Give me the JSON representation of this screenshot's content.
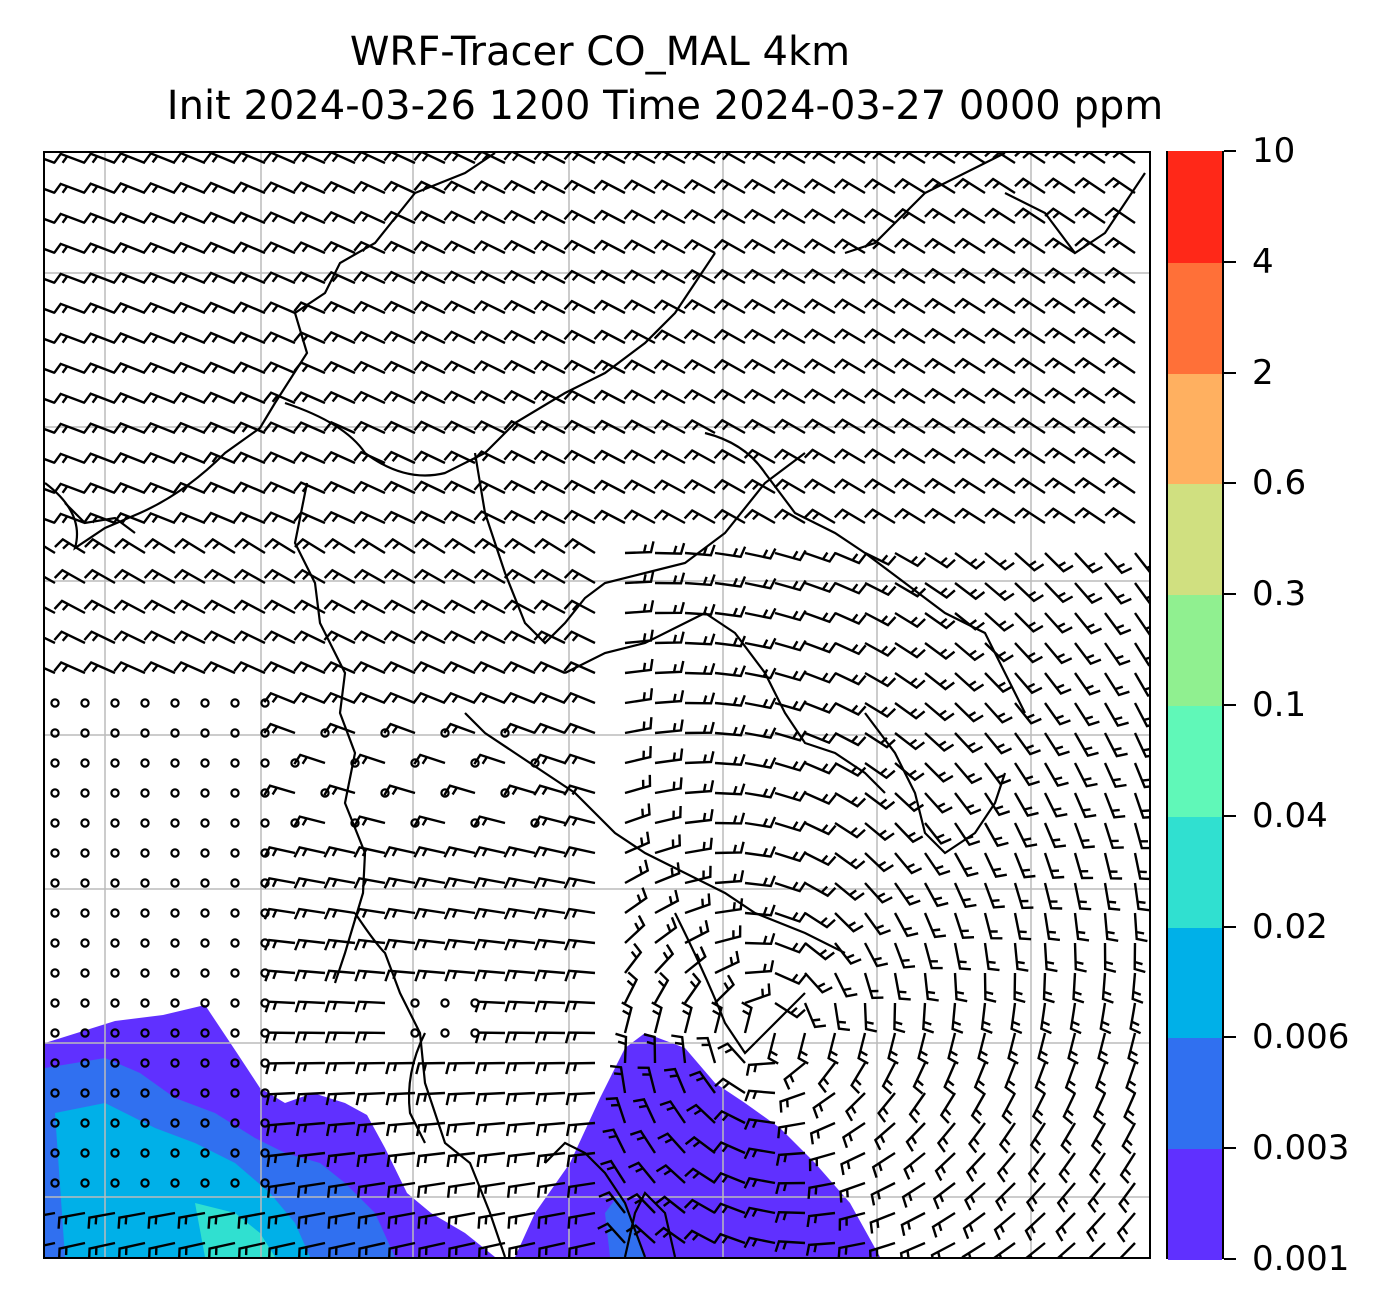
{
  "title": {
    "line1": "WRF-Tracer CO_MAL 4km",
    "line2": "Init 2024-03-26 1200 Time 2024-03-27 0000 ppm"
  },
  "colorbar": {
    "levels": [
      {
        "label": "0.001",
        "color": "#6030ff"
      },
      {
        "label": "0.003",
        "color": "#3070f0"
      },
      {
        "label": "0.006",
        "color": "#00b0e8"
      },
      {
        "label": "0.02",
        "color": "#30e0d0"
      },
      {
        "label": "0.04",
        "color": "#60f8b8"
      },
      {
        "label": "0.1",
        "color": "#90f090"
      },
      {
        "label": "0.3",
        "color": "#d0e080"
      },
      {
        "label": "0.6",
        "color": "#ffb060"
      },
      {
        "label": "2",
        "color": "#ff7038"
      },
      {
        "label": "4",
        "color": "#ff2818"
      },
      {
        "label": "10",
        "color": null
      }
    ]
  },
  "map": {
    "gridlines": "on",
    "gridline_color": "#bbbbbb",
    "contour_fill_colors": [
      "#6030ff",
      "#3070f0",
      "#00b0e8",
      "#30e0d0"
    ],
    "overlay": "wind-barbs",
    "coastline_color": "#000000"
  }
}
